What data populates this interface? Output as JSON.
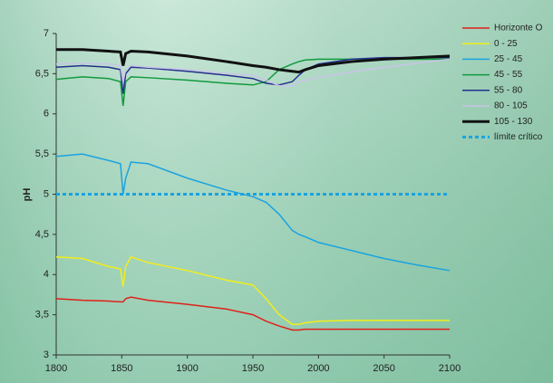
{
  "chart_data": {
    "type": "line",
    "y_label": "pH",
    "x": [
      1800,
      1820,
      1840,
      1849,
      1851,
      1853,
      1857,
      1870,
      1900,
      1930,
      1950,
      1960,
      1970,
      1980,
      1985,
      1990,
      2000,
      2025,
      2050,
      2075,
      2100
    ],
    "series": [
      {
        "name": "Horizonte O",
        "color": "#e0201b",
        "width": 1.5,
        "values": [
          3.7,
          3.68,
          3.67,
          3.66,
          3.66,
          3.7,
          3.72,
          3.68,
          3.63,
          3.57,
          3.5,
          3.42,
          3.36,
          3.31,
          3.31,
          3.32,
          3.32,
          3.32,
          3.32,
          3.32,
          3.32
        ]
      },
      {
        "name": "0 - 25",
        "color": "#f2ee1a",
        "width": 1.5,
        "values": [
          4.22,
          4.2,
          4.1,
          4.07,
          3.85,
          4.1,
          4.22,
          4.15,
          4.05,
          3.93,
          3.87,
          3.7,
          3.5,
          3.38,
          3.38,
          3.4,
          3.42,
          3.43,
          3.43,
          3.43,
          3.43
        ]
      },
      {
        "name": "25 - 45",
        "color": "#1aa3e0",
        "width": 1.5,
        "values": [
          5.47,
          5.5,
          5.42,
          5.38,
          5.0,
          5.2,
          5.4,
          5.38,
          5.2,
          5.05,
          4.97,
          4.9,
          4.75,
          4.55,
          4.5,
          4.47,
          4.4,
          4.3,
          4.2,
          4.12,
          4.05
        ]
      },
      {
        "name": "45 - 55",
        "color": "#119a3c",
        "width": 1.5,
        "values": [
          6.43,
          6.46,
          6.44,
          6.4,
          6.1,
          6.4,
          6.46,
          6.45,
          6.42,
          6.38,
          6.36,
          6.4,
          6.55,
          6.62,
          6.65,
          6.67,
          6.68,
          6.68,
          6.68,
          6.68,
          6.68
        ]
      },
      {
        "name": "55 - 80",
        "color": "#23308c",
        "width": 1.5,
        "values": [
          6.58,
          6.6,
          6.58,
          6.55,
          6.25,
          6.5,
          6.58,
          6.57,
          6.53,
          6.48,
          6.44,
          6.38,
          6.36,
          6.4,
          6.48,
          6.55,
          6.62,
          6.68,
          6.7,
          6.7,
          6.7
        ]
      },
      {
        "name": "80 - 105",
        "color": "#c9c4e6",
        "width": 1.5,
        "values": [
          6.62,
          6.63,
          6.62,
          6.6,
          6.4,
          6.55,
          6.6,
          6.58,
          6.55,
          6.5,
          6.48,
          6.42,
          6.35,
          6.35,
          6.4,
          6.42,
          6.45,
          6.52,
          6.58,
          6.63,
          6.68
        ]
      },
      {
        "name": "105 - 130",
        "color": "#111111",
        "width": 3,
        "values": [
          6.8,
          6.8,
          6.78,
          6.77,
          6.6,
          6.75,
          6.78,
          6.77,
          6.72,
          6.65,
          6.6,
          6.58,
          6.55,
          6.53,
          6.52,
          6.55,
          6.6,
          6.65,
          6.68,
          6.7,
          6.72
        ]
      }
    ],
    "critical_limit": {
      "name": "límite crítico",
      "value": 5,
      "color": "#1aa3e0"
    },
    "xlim": [
      1800,
      2100
    ],
    "xticks": [
      1800,
      1850,
      1900,
      1950,
      2000,
      2050,
      2100
    ],
    "ylim": [
      3,
      7
    ],
    "yticks": [
      3,
      {
        "value": 3.5,
        "label": "3,5"
      },
      4,
      {
        "value": 4.5,
        "label": "4,5"
      },
      5,
      {
        "value": 5.5,
        "label": "5,5"
      },
      6,
      {
        "value": 6.5,
        "label": "6,5"
      },
      7
    ],
    "grid": false
  }
}
